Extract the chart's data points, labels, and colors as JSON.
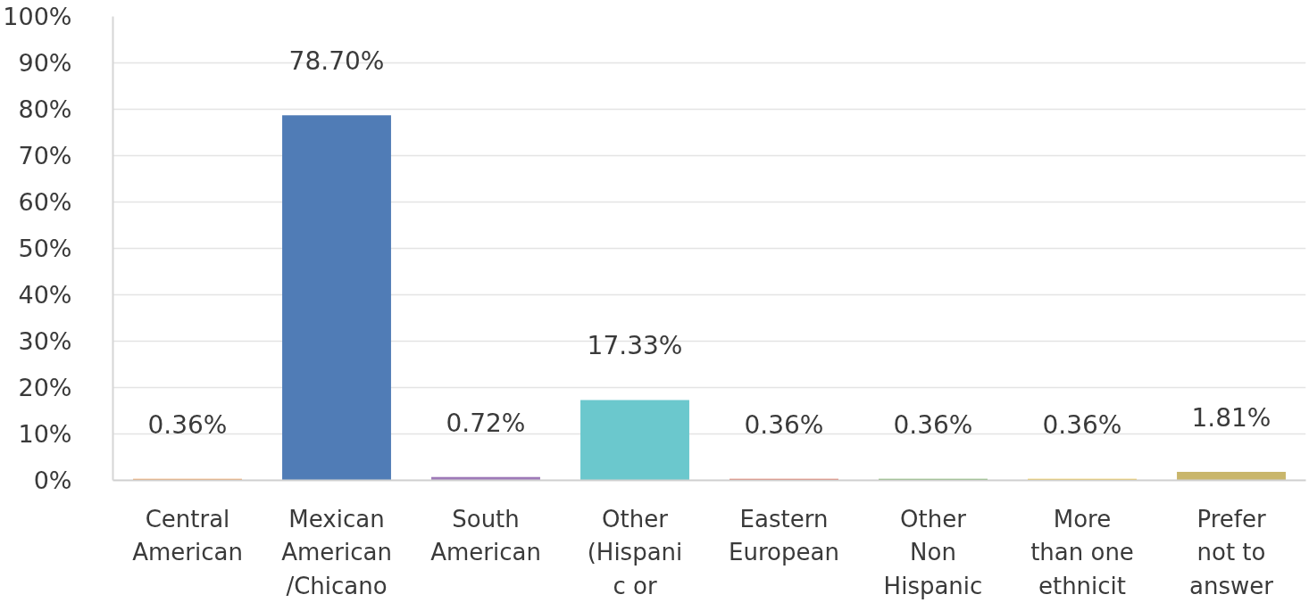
{
  "chart_data": {
    "type": "bar",
    "categories": [
      "Central American",
      "Mexican American /Chicano",
      "South American",
      "Other (Hispanic or",
      "Eastern European",
      "Other Non Hispanic",
      "More than one ethnicit",
      "Prefer not to answer"
    ],
    "values": [
      0.36,
      78.7,
      0.72,
      17.33,
      0.36,
      0.36,
      0.36,
      1.81
    ],
    "colors": [
      "#f2a35e",
      "#507cb6",
      "#9e7ab8",
      "#6bc8cd",
      "#e3735e",
      "#7fb66b",
      "#f0c84b",
      "#c9b66b"
    ],
    "value_labels": [
      "0.36%",
      "78.70%",
      "0.72%",
      "17.33%",
      "0.36%",
      "0.36%",
      "0.36%",
      "1.81%"
    ],
    "ylim": [
      0,
      100
    ],
    "yticks": [
      {
        "value": 0,
        "label": "0%"
      },
      {
        "value": 10,
        "label": "10%"
      },
      {
        "value": 20,
        "label": "20%"
      },
      {
        "value": 30,
        "label": "30%"
      },
      {
        "value": 40,
        "label": "40%"
      },
      {
        "value": 50,
        "label": "50%"
      },
      {
        "value": 60,
        "label": "60%"
      },
      {
        "value": 70,
        "label": "70%"
      },
      {
        "value": 80,
        "label": "80%"
      },
      {
        "value": 90,
        "label": "90%"
      },
      {
        "value": 100,
        "label": "100%"
      }
    ],
    "grid": "y"
  }
}
